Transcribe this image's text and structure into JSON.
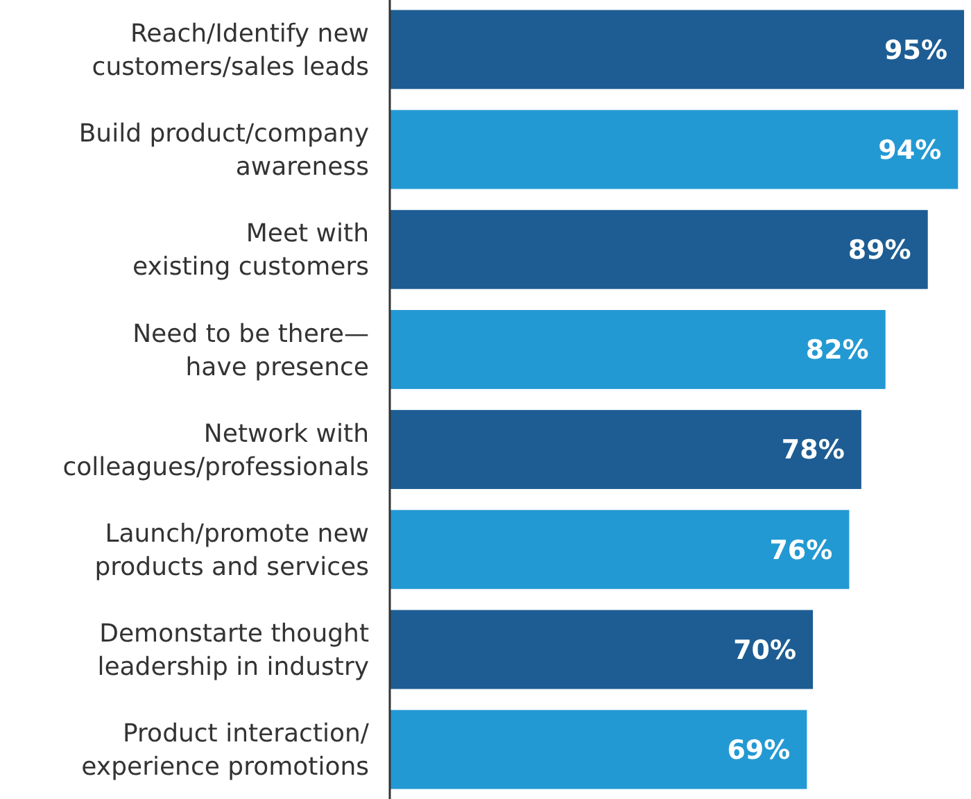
{
  "chart_data": {
    "type": "bar",
    "orientation": "horizontal",
    "categories": [
      "Reach/Identify new\ncustomers/sales leads",
      "Build product/company\nawareness",
      "Meet with\nexisting customers",
      "Need to be there—\nhave presence",
      "Network with\ncolleagues/professionals",
      "Launch/promote new\nproducts and services",
      "Demonstarte thought\nleadership in industry",
      "Product interaction/\nexperience promotions"
    ],
    "values": [
      95,
      94,
      89,
      82,
      78,
      76,
      70,
      69
    ],
    "colors": [
      "#1d5d93",
      "#2399d3",
      "#1d5d93",
      "#2399d3",
      "#1d5d93",
      "#2399d3",
      "#1d5d93",
      "#2399d3"
    ],
    "value_labels": [
      "95%",
      "94%",
      "89%",
      "82%",
      "78%",
      "76%",
      "70%",
      "69%"
    ],
    "tick_labels": "y"
  }
}
